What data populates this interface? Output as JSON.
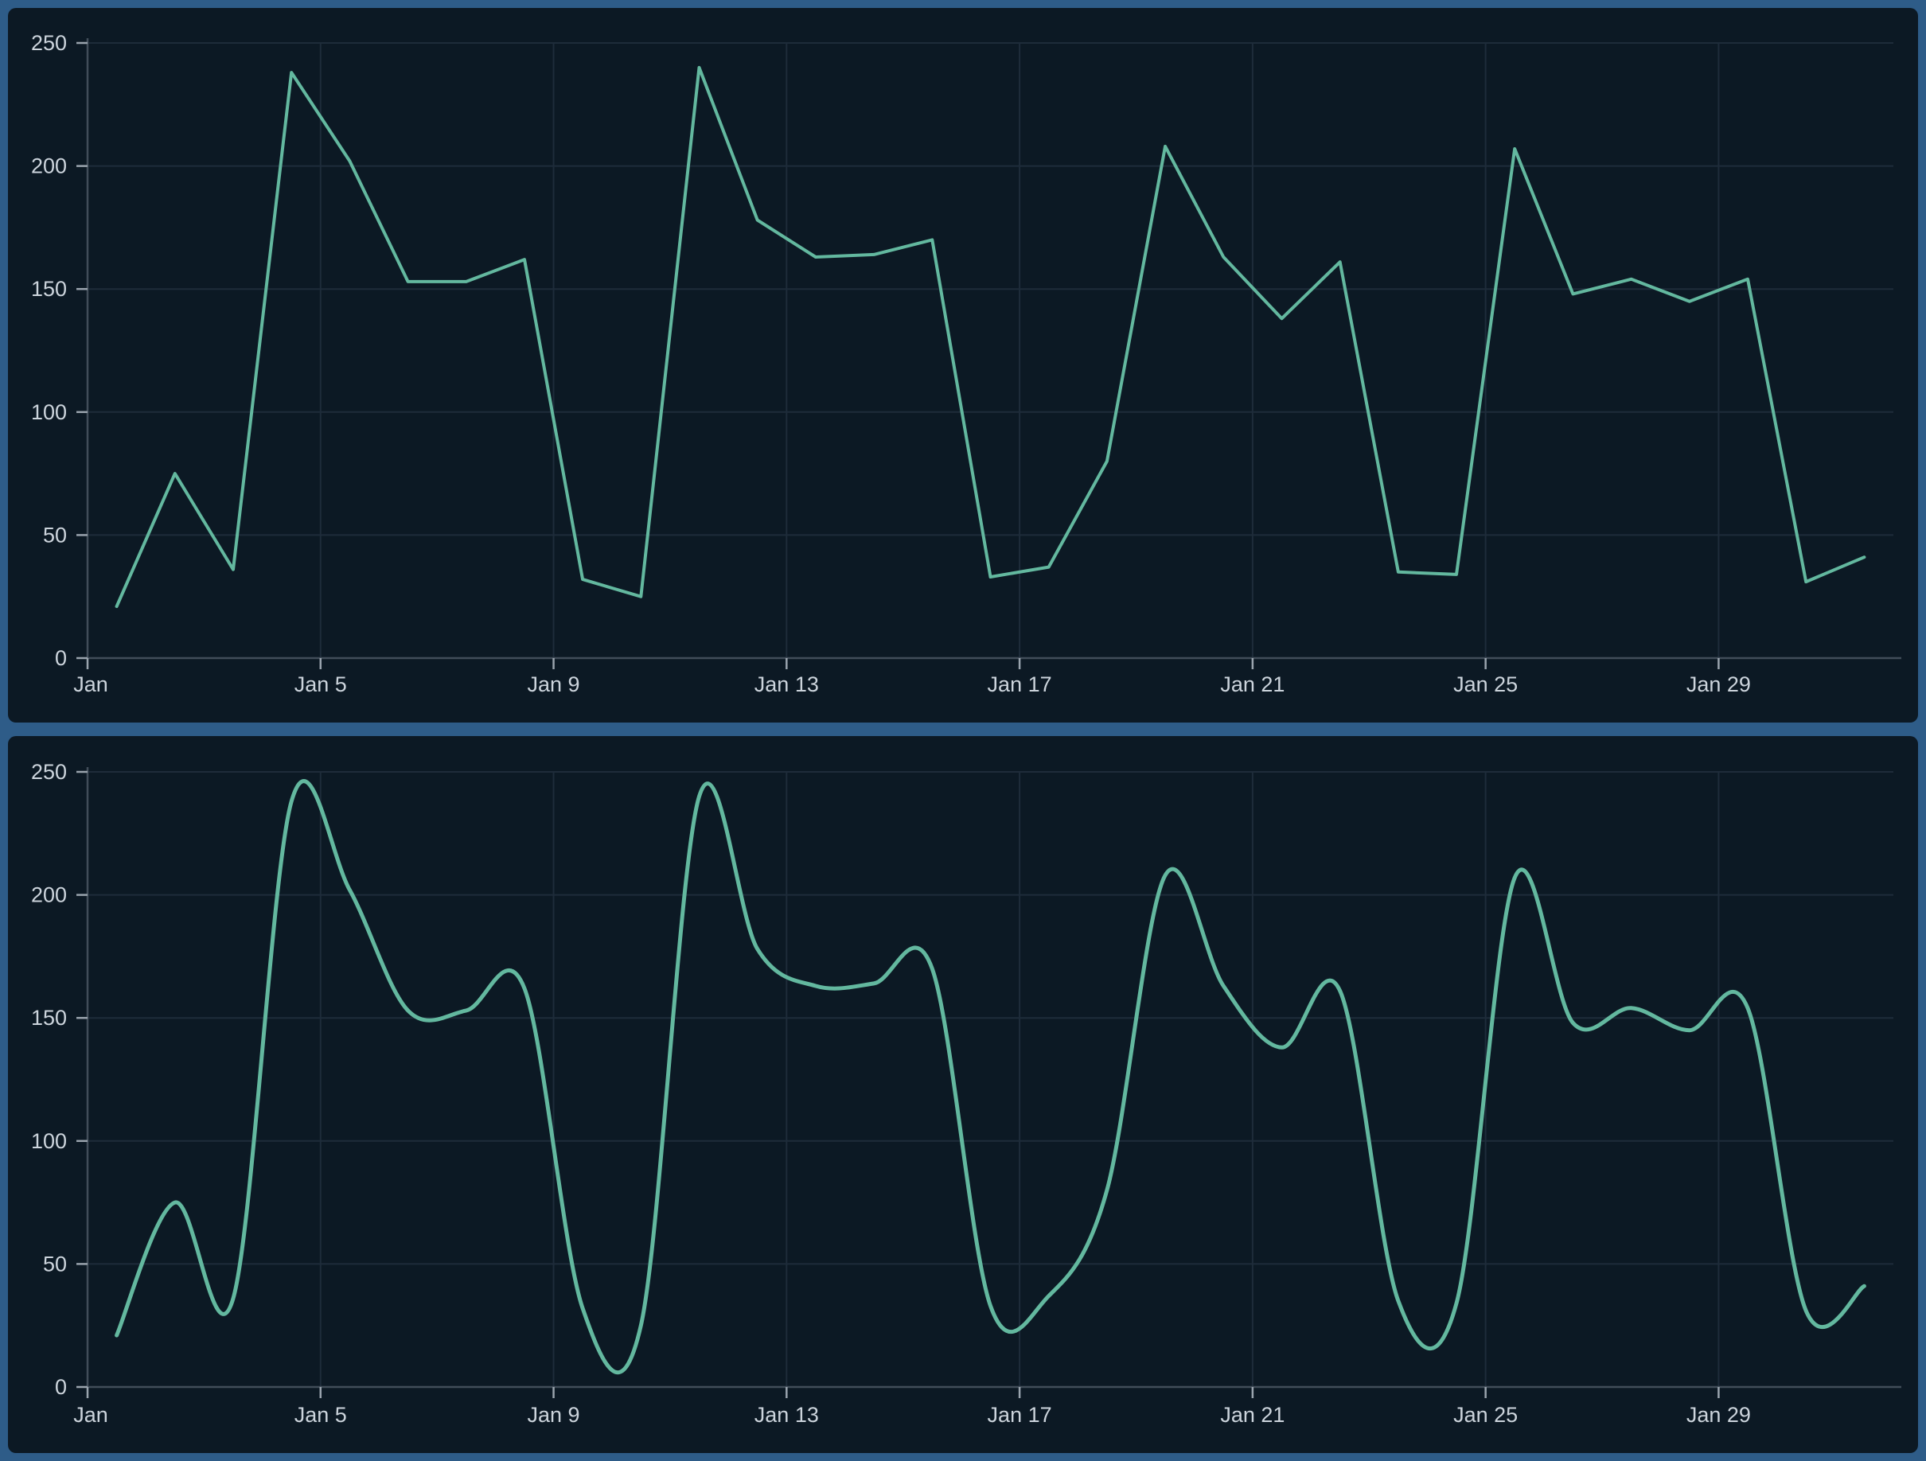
{
  "page": {
    "background_color": "#2e5c88",
    "panel_background_color": "#0c1924",
    "panel_count": 2
  },
  "colors": {
    "accent_line": "#63b89f",
    "grid_line": "#1e2c3a",
    "axis_line": "#414d59",
    "tick_mark": "#9aa4ae",
    "label_text": "#ccd4dc",
    "border_blue": "#2e5c88",
    "panel_bg": "#0c1924"
  },
  "chart_data": [
    {
      "type": "line",
      "name": "daily-series-raw",
      "title": "",
      "smooth": false,
      "line_color": "#63b89f",
      "line_width": 4,
      "categories": [
        "Jan 1",
        "Jan 2",
        "Jan 3",
        "Jan 4",
        "Jan 5",
        "Jan 6",
        "Jan 7",
        "Jan 8",
        "Jan 9",
        "Jan 10",
        "Jan 11",
        "Jan 12",
        "Jan 13",
        "Jan 14",
        "Jan 15",
        "Jan 16",
        "Jan 17",
        "Jan 18",
        "Jan 19",
        "Jan 20",
        "Jan 21",
        "Jan 22",
        "Jan 23",
        "Jan 24",
        "Jan 25",
        "Jan 26",
        "Jan 27",
        "Jan 28",
        "Jan 29",
        "Jan 30",
        "Jan 31"
      ],
      "values": [
        21,
        75,
        36,
        238,
        202,
        153,
        153,
        162,
        32,
        25,
        240,
        178,
        163,
        164,
        170,
        33,
        37,
        80,
        208,
        163,
        138,
        161,
        35,
        34,
        207,
        148,
        154,
        145,
        154,
        31,
        41
      ],
      "x_tick_labels": [
        "Jan",
        "Jan 5",
        "Jan 9",
        "Jan 13",
        "Jan 17",
        "Jan 21",
        "Jan 25",
        "Jan 29"
      ],
      "x_tick_indices": [
        0,
        4,
        8,
        12,
        16,
        20,
        24,
        28
      ],
      "y_ticks": [
        0,
        50,
        100,
        150,
        200,
        250
      ],
      "ylim": [
        0,
        250
      ],
      "xlabel": "",
      "ylabel": "",
      "grid": true,
      "legend": "none"
    },
    {
      "type": "line",
      "name": "daily-series-smooth",
      "title": "",
      "smooth": true,
      "line_color": "#63b89f",
      "line_width": 5,
      "categories": [
        "Jan 1",
        "Jan 2",
        "Jan 3",
        "Jan 4",
        "Jan 5",
        "Jan 6",
        "Jan 7",
        "Jan 8",
        "Jan 9",
        "Jan 10",
        "Jan 11",
        "Jan 12",
        "Jan 13",
        "Jan 14",
        "Jan 15",
        "Jan 16",
        "Jan 17",
        "Jan 18",
        "Jan 19",
        "Jan 20",
        "Jan 21",
        "Jan 22",
        "Jan 23",
        "Jan 24",
        "Jan 25",
        "Jan 26",
        "Jan 27",
        "Jan 28",
        "Jan 29",
        "Jan 30",
        "Jan 31"
      ],
      "values": [
        21,
        75,
        36,
        238,
        202,
        153,
        153,
        162,
        32,
        25,
        240,
        178,
        163,
        164,
        170,
        33,
        37,
        80,
        208,
        163,
        138,
        161,
        35,
        34,
        207,
        148,
        154,
        145,
        154,
        31,
        41
      ],
      "x_tick_labels": [
        "Jan",
        "Jan 5",
        "Jan 9",
        "Jan 13",
        "Jan 17",
        "Jan 21",
        "Jan 25",
        "Jan 29"
      ],
      "x_tick_indices": [
        0,
        4,
        8,
        12,
        16,
        20,
        24,
        28
      ],
      "y_ticks": [
        0,
        50,
        100,
        150,
        200,
        250
      ],
      "ylim": [
        0,
        250
      ],
      "xlabel": "",
      "ylabel": "",
      "grid": true,
      "legend": "none"
    }
  ]
}
